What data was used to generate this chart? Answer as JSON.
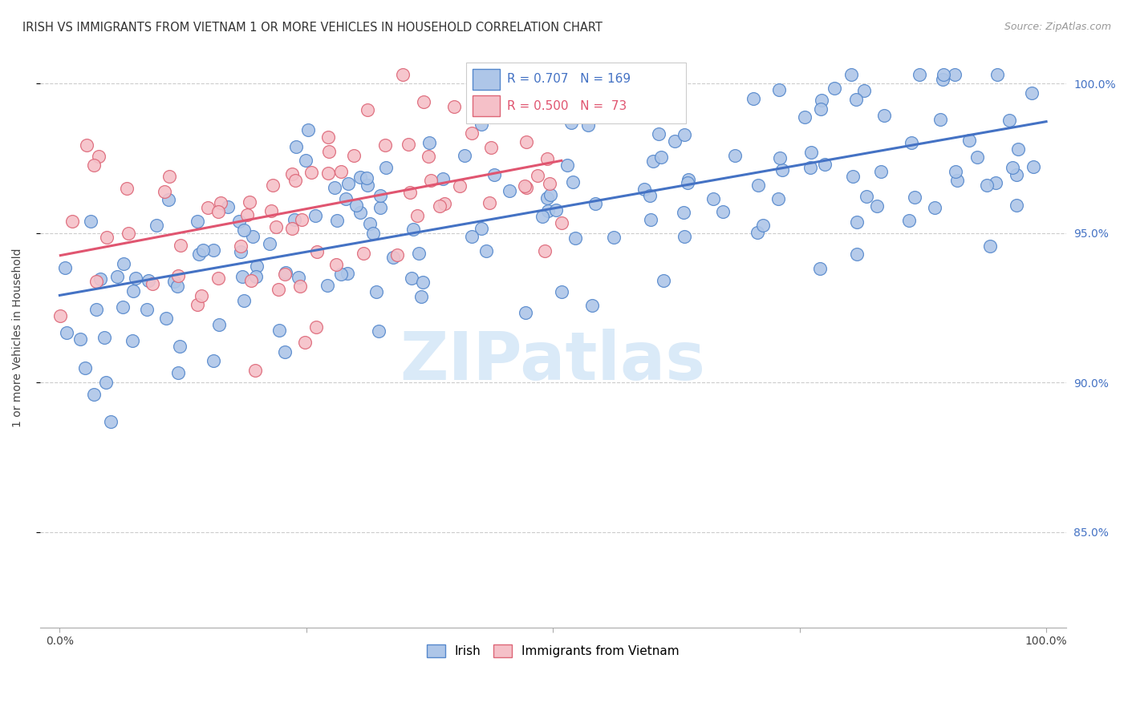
{
  "title": "IRISH VS IMMIGRANTS FROM VIETNAM 1 OR MORE VEHICLES IN HOUSEHOLD CORRELATION CHART",
  "source": "Source: ZipAtlas.com",
  "ylabel": "1 or more Vehicles in Household",
  "ytick_labels": [
    "85.0%",
    "90.0%",
    "95.0%",
    "100.0%"
  ],
  "ytick_values": [
    0.85,
    0.9,
    0.95,
    1.0
  ],
  "xlim": [
    -0.02,
    1.02
  ],
  "ylim": [
    0.818,
    1.012
  ],
  "irish_R": 0.707,
  "irish_N": 169,
  "vietnam_R": 0.5,
  "vietnam_N": 73,
  "irish_marker_face": "#aec6e8",
  "irish_marker_edge": "#5588cc",
  "irish_line_color": "#4472c4",
  "vietnam_marker_face": "#f5c0c8",
  "vietnam_marker_edge": "#dd6677",
  "vietnam_line_color": "#e05570",
  "background_color": "#ffffff",
  "watermark_text": "ZIPatlas",
  "watermark_color": "#daeaf8",
  "title_fontsize": 10.5,
  "source_fontsize": 9,
  "legend_fontsize": 11,
  "tick_fontsize": 10,
  "ylabel_fontsize": 10
}
